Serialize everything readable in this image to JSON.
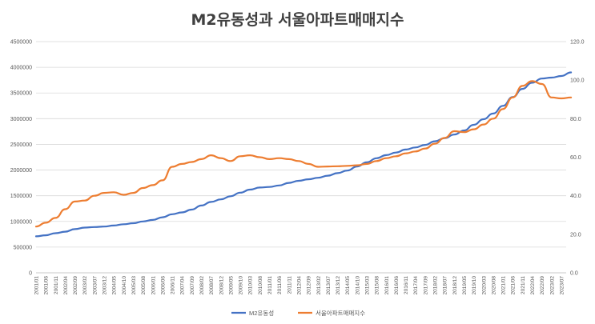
{
  "chart_data": {
    "type": "line",
    "title": "M2유동성과 서울아파트매매지수",
    "xlabel": "",
    "ylabel": "",
    "y_left": {
      "min": 0,
      "max": 4500000,
      "ticks": [
        "0",
        "500000",
        "1000000",
        "1500000",
        "2000000",
        "2500000",
        "3000000",
        "3500000",
        "4000000",
        "4500000"
      ]
    },
    "y_right": {
      "min": 0,
      "max": 120,
      "ticks": [
        "0.0",
        "20.0",
        "40.0",
        "60.0",
        "80.0",
        "100.0",
        "120.0"
      ]
    },
    "grid": "horizontal",
    "legend_position": "bottom",
    "x_tick_labels": [
      "2001/01",
      "2001/06",
      "2001/11",
      "2002/04",
      "2002/09",
      "2003/02",
      "2003/07",
      "2003/12",
      "2004/05",
      "2004/10",
      "2005/03",
      "2005/08",
      "2006/01",
      "2006/06",
      "2006/11",
      "2007/04",
      "2007/09",
      "2008/02",
      "2008/07",
      "2008/12",
      "2009/05",
      "2009/10",
      "2010/03",
      "2010/08",
      "2011/01",
      "2011/06",
      "2011/11",
      "2012/04",
      "2012/09",
      "2013/02",
      "2013/07",
      "2013/12",
      "2014/05",
      "2014/10",
      "2015/03",
      "2015/08",
      "2016/01",
      "2016/06",
      "2016/11",
      "2017/04",
      "2017/09",
      "2018/02",
      "2018/07",
      "2018/12",
      "2019/05",
      "2019/10",
      "2020/03",
      "2020/08",
      "2021/01",
      "2021/06",
      "2021/11",
      "2022/04",
      "2022/09",
      "2023/02",
      "2023/07"
    ],
    "series": [
      {
        "name": "M2유동성",
        "axis": "left",
        "color": "#4472C4",
        "points": [
          [
            "2001/01",
            710000
          ],
          [
            "2001/06",
            730000
          ],
          [
            "2001/11",
            770000
          ],
          [
            "2002/04",
            800000
          ],
          [
            "2002/09",
            850000
          ],
          [
            "2003/02",
            880000
          ],
          [
            "2003/07",
            890000
          ],
          [
            "2003/12",
            900000
          ],
          [
            "2004/05",
            920000
          ],
          [
            "2004/10",
            945000
          ],
          [
            "2005/03",
            965000
          ],
          [
            "2005/08",
            1000000
          ],
          [
            "2006/01",
            1030000
          ],
          [
            "2006/06",
            1080000
          ],
          [
            "2006/11",
            1140000
          ],
          [
            "2007/04",
            1175000
          ],
          [
            "2007/09",
            1230000
          ],
          [
            "2008/02",
            1310000
          ],
          [
            "2008/07",
            1380000
          ],
          [
            "2008/12",
            1430000
          ],
          [
            "2009/05",
            1490000
          ],
          [
            "2009/10",
            1560000
          ],
          [
            "2010/03",
            1620000
          ],
          [
            "2010/08",
            1660000
          ],
          [
            "2011/01",
            1670000
          ],
          [
            "2011/06",
            1700000
          ],
          [
            "2011/11",
            1750000
          ],
          [
            "2012/04",
            1790000
          ],
          [
            "2012/09",
            1820000
          ],
          [
            "2013/02",
            1850000
          ],
          [
            "2013/07",
            1890000
          ],
          [
            "2013/12",
            1940000
          ],
          [
            "2014/05",
            1990000
          ],
          [
            "2014/10",
            2070000
          ],
          [
            "2015/03",
            2150000
          ],
          [
            "2015/08",
            2230000
          ],
          [
            "2016/01",
            2290000
          ],
          [
            "2016/06",
            2340000
          ],
          [
            "2016/11",
            2400000
          ],
          [
            "2017/04",
            2440000
          ],
          [
            "2017/09",
            2490000
          ],
          [
            "2018/02",
            2560000
          ],
          [
            "2018/07",
            2620000
          ],
          [
            "2018/12",
            2690000
          ],
          [
            "2019/05",
            2770000
          ],
          [
            "2019/10",
            2880000
          ],
          [
            "2020/03",
            2990000
          ],
          [
            "2020/08",
            3100000
          ],
          [
            "2021/01",
            3250000
          ],
          [
            "2021/06",
            3420000
          ],
          [
            "2021/11",
            3580000
          ],
          [
            "2022/04",
            3700000
          ],
          [
            "2022/09",
            3780000
          ],
          [
            "2023/02",
            3800000
          ],
          [
            "2023/07",
            3830000
          ],
          [
            "2023/12",
            3900000
          ]
        ]
      },
      {
        "name": "서울아파트매매지수",
        "axis": "right",
        "color": "#ED7D31",
        "points": [
          [
            "2001/01",
            24
          ],
          [
            "2001/06",
            26
          ],
          [
            "2001/11",
            28.5
          ],
          [
            "2002/04",
            33
          ],
          [
            "2002/09",
            37
          ],
          [
            "2003/02",
            37.5
          ],
          [
            "2003/07",
            40
          ],
          [
            "2003/12",
            41.5
          ],
          [
            "2004/05",
            41.8
          ],
          [
            "2004/10",
            40.5
          ],
          [
            "2005/03",
            41.5
          ],
          [
            "2005/08",
            44
          ],
          [
            "2006/01",
            45.5
          ],
          [
            "2006/06",
            48
          ],
          [
            "2006/11",
            55
          ],
          [
            "2007/04",
            56.5
          ],
          [
            "2007/09",
            57.5
          ],
          [
            "2008/02",
            59
          ],
          [
            "2008/07",
            61
          ],
          [
            "2008/12",
            59.5
          ],
          [
            "2009/05",
            58
          ],
          [
            "2009/10",
            60.5
          ],
          [
            "2010/03",
            61
          ],
          [
            "2010/08",
            60
          ],
          [
            "2011/01",
            59
          ],
          [
            "2011/06",
            59.5
          ],
          [
            "2011/11",
            59
          ],
          [
            "2012/04",
            58
          ],
          [
            "2012/09",
            56.5
          ],
          [
            "2013/02",
            55
          ],
          [
            "2013/07",
            55.2
          ],
          [
            "2013/12",
            55.3
          ],
          [
            "2014/05",
            55.5
          ],
          [
            "2014/10",
            55.8
          ],
          [
            "2015/03",
            56.5
          ],
          [
            "2015/08",
            58
          ],
          [
            "2016/01",
            59.5
          ],
          [
            "2016/06",
            60.5
          ],
          [
            "2016/11",
            62
          ],
          [
            "2017/04",
            63
          ],
          [
            "2017/09",
            64.5
          ],
          [
            "2018/02",
            67
          ],
          [
            "2018/07",
            70
          ],
          [
            "2018/12",
            73.5
          ],
          [
            "2019/05",
            73
          ],
          [
            "2019/10",
            74.5
          ],
          [
            "2020/03",
            77
          ],
          [
            "2020/08",
            80
          ],
          [
            "2021/01",
            85
          ],
          [
            "2021/06",
            91
          ],
          [
            "2021/11",
            97
          ],
          [
            "2022/04",
            99.5
          ],
          [
            "2022/09",
            98
          ],
          [
            "2023/02",
            91
          ],
          [
            "2023/07",
            90.5
          ],
          [
            "2023/12",
            91
          ]
        ]
      }
    ]
  },
  "colors": {
    "grid": "#D9D9D9",
    "axis_text": "#595959",
    "title": "#404040"
  }
}
